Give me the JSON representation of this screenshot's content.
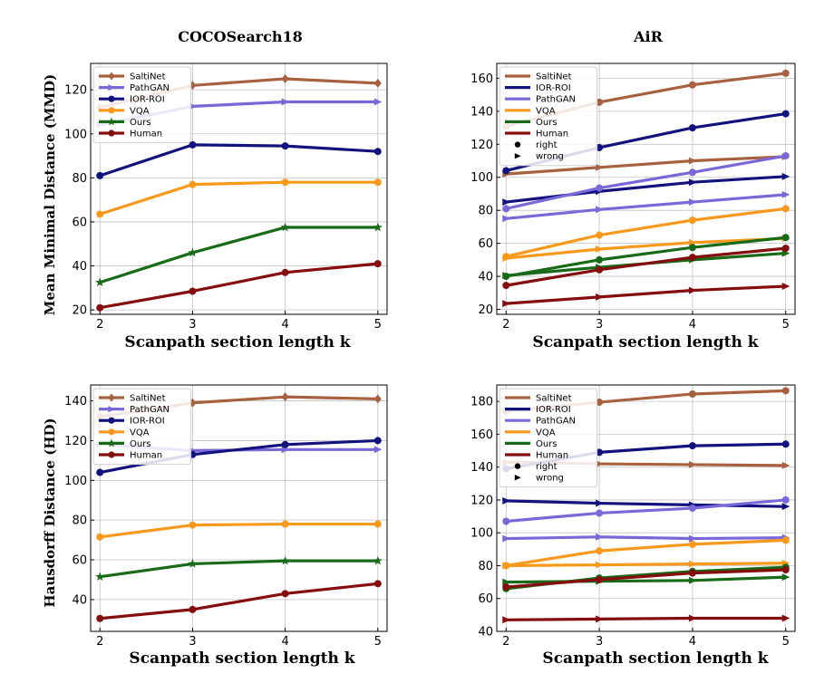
{
  "colors": {
    "saltinet": "#a8613f",
    "pathgan": "#7b68d8",
    "iorroi": "#12127e",
    "vqa": "#f8991c",
    "ours": "#176b17",
    "human": "#850d0d"
  },
  "chart_data": [
    {
      "type": "line",
      "title": "COCOSearch18",
      "ylabel": "Mean Minimal Distance (MMD)",
      "xlabel": "Scanpath section length k",
      "x": [
        2,
        3,
        4,
        5
      ],
      "ylim": [
        18,
        132
      ],
      "yticks": [
        20,
        40,
        60,
        80,
        100,
        120
      ],
      "grid": true,
      "legend_position": "top-left",
      "legend": [
        {
          "label": "SaltiNet",
          "color_key": "saltinet",
          "marker": "diamond"
        },
        {
          "label": "PathGAN",
          "color_key": "pathgan",
          "marker": "triangle-right"
        },
        {
          "label": "IOR-ROI",
          "color_key": "iorroi",
          "marker": "circle"
        },
        {
          "label": "VQA",
          "color_key": "vqa",
          "marker": "circle"
        },
        {
          "label": "Ours",
          "color_key": "ours",
          "marker": "star"
        },
        {
          "label": "Human",
          "color_key": "human",
          "marker": "circle"
        }
      ],
      "series": [
        {
          "name": "SaltiNet",
          "color_key": "saltinet",
          "marker": "diamond",
          "values": [
            112,
            122,
            125,
            123
          ]
        },
        {
          "name": "PathGAN",
          "color_key": "pathgan",
          "marker": "triangle-right",
          "values": [
            104,
            112.5,
            114.5,
            114.5
          ]
        },
        {
          "name": "IOR-ROI",
          "color_key": "iorroi",
          "marker": "circle",
          "values": [
            81,
            95,
            94.5,
            92
          ]
        },
        {
          "name": "VQA",
          "color_key": "vqa",
          "marker": "circle",
          "values": [
            63.5,
            77,
            78,
            78
          ]
        },
        {
          "name": "Ours",
          "color_key": "ours",
          "marker": "star",
          "values": [
            32.5,
            46,
            57.5,
            57.5
          ]
        },
        {
          "name": "Human",
          "color_key": "human",
          "marker": "circle",
          "values": [
            21,
            28.5,
            37,
            41
          ]
        }
      ]
    },
    {
      "type": "line",
      "title": "AiR",
      "ylabel": "",
      "xlabel": "Scanpath section length k",
      "x": [
        2,
        3,
        4,
        5
      ],
      "ylim": [
        17,
        169
      ],
      "yticks": [
        20,
        40,
        60,
        80,
        100,
        120,
        140,
        160
      ],
      "grid": true,
      "legend_position": "top-left",
      "legend": [
        {
          "label": "SaltiNet",
          "color_key": "saltinet",
          "marker": "line"
        },
        {
          "label": "IOR-ROI",
          "color_key": "iorroi",
          "marker": "line"
        },
        {
          "label": "PathGAN",
          "color_key": "pathgan",
          "marker": "line"
        },
        {
          "label": "VQA",
          "color_key": "vqa",
          "marker": "line"
        },
        {
          "label": "Ours",
          "color_key": "ours",
          "marker": "line"
        },
        {
          "label": "Human",
          "color_key": "human",
          "marker": "line"
        },
        {
          "label": "right",
          "color": "#000000",
          "marker": "circle"
        },
        {
          "label": "wrong",
          "color": "#000000",
          "marker": "triangle-right"
        }
      ],
      "series": [
        {
          "name": "SaltiNet right",
          "color_key": "saltinet",
          "marker": "circle",
          "values": [
            131,
            145.5,
            156,
            163
          ]
        },
        {
          "name": "SaltiNet wrong",
          "color_key": "saltinet",
          "marker": "triangle-right",
          "values": [
            102,
            106,
            110,
            112.5
          ]
        },
        {
          "name": "IOR-ROI right",
          "color_key": "iorroi",
          "marker": "circle",
          "values": [
            104,
            118,
            130,
            138.5
          ]
        },
        {
          "name": "IOR-ROI wrong",
          "color_key": "iorroi",
          "marker": "triangle-right",
          "values": [
            85,
            91.5,
            97,
            100.5
          ]
        },
        {
          "name": "PathGAN right",
          "color_key": "pathgan",
          "marker": "circle",
          "values": [
            81,
            93.5,
            103,
            113
          ]
        },
        {
          "name": "PathGAN wrong",
          "color_key": "pathgan",
          "marker": "triangle-right",
          "values": [
            75,
            80.5,
            85,
            89.5
          ]
        },
        {
          "name": "VQA right",
          "color_key": "vqa",
          "marker": "circle",
          "values": [
            52,
            65,
            74,
            81
          ]
        },
        {
          "name": "VQA wrong",
          "color_key": "vqa",
          "marker": "triangle-right",
          "values": [
            51,
            56.5,
            60.5,
            63
          ]
        },
        {
          "name": "Ours right",
          "color_key": "ours",
          "marker": "circle",
          "values": [
            40,
            50,
            57.5,
            63.5
          ]
        },
        {
          "name": "Ours wrong",
          "color_key": "ours",
          "marker": "triangle-right",
          "values": [
            40.5,
            45.5,
            50,
            54
          ]
        },
        {
          "name": "Human right",
          "color_key": "human",
          "marker": "circle",
          "values": [
            34.5,
            44,
            51.5,
            57
          ]
        },
        {
          "name": "Human wrong",
          "color_key": "human",
          "marker": "triangle-right",
          "values": [
            23.5,
            27.5,
            31.5,
            34
          ]
        }
      ]
    },
    {
      "type": "line",
      "title": "",
      "ylabel": "Hausdorff Distance (HD)",
      "xlabel": "Scanpath section length k",
      "x": [
        2,
        3,
        4,
        5
      ],
      "ylim": [
        24,
        148
      ],
      "yticks": [
        40,
        60,
        80,
        100,
        120,
        140
      ],
      "grid": true,
      "legend_position": "top-left",
      "legend": [
        {
          "label": "SaltiNet",
          "color_key": "saltinet",
          "marker": "diamond"
        },
        {
          "label": "PathGAN",
          "color_key": "pathgan",
          "marker": "triangle-right"
        },
        {
          "label": "IOR-ROI",
          "color_key": "iorroi",
          "marker": "circle"
        },
        {
          "label": "VQA",
          "color_key": "vqa",
          "marker": "circle"
        },
        {
          "label": "Ours",
          "color_key": "ours",
          "marker": "star"
        },
        {
          "label": "Human",
          "color_key": "human",
          "marker": "circle"
        }
      ],
      "series": [
        {
          "name": "SaltiNet",
          "color_key": "saltinet",
          "marker": "diamond",
          "values": [
            132,
            139,
            142,
            141
          ]
        },
        {
          "name": "PathGAN",
          "color_key": "pathgan",
          "marker": "triangle-right",
          "values": [
            118,
            115,
            115.5,
            115.5
          ]
        },
        {
          "name": "IOR-ROI",
          "color_key": "iorroi",
          "marker": "circle",
          "values": [
            104,
            113,
            118,
            120
          ]
        },
        {
          "name": "VQA",
          "color_key": "vqa",
          "marker": "circle",
          "values": [
            71.5,
            77.5,
            78,
            78
          ]
        },
        {
          "name": "Ours",
          "color_key": "ours",
          "marker": "star",
          "values": [
            51.5,
            58,
            59.5,
            59.5
          ]
        },
        {
          "name": "Human",
          "color_key": "human",
          "marker": "circle",
          "values": [
            30.5,
            35,
            43,
            48
          ]
        }
      ]
    },
    {
      "type": "line",
      "title": "",
      "ylabel": "",
      "xlabel": "Scanpath section length k",
      "x": [
        2,
        3,
        4,
        5
      ],
      "ylim": [
        40,
        190
      ],
      "yticks": [
        40,
        60,
        80,
        100,
        120,
        140,
        160,
        180
      ],
      "grid": true,
      "legend_position": "top-left",
      "legend": [
        {
          "label": "SaltiNet",
          "color_key": "saltinet",
          "marker": "line"
        },
        {
          "label": "IOR-ROI",
          "color_key": "iorroi",
          "marker": "line"
        },
        {
          "label": "PathGAN",
          "color_key": "pathgan",
          "marker": "line"
        },
        {
          "label": "VQA",
          "color_key": "vqa",
          "marker": "line"
        },
        {
          "label": "Ours",
          "color_key": "ours",
          "marker": "line"
        },
        {
          "label": "Human",
          "color_key": "human",
          "marker": "line"
        },
        {
          "label": "right",
          "color": "#000000",
          "marker": "circle"
        },
        {
          "label": "wrong",
          "color": "#000000",
          "marker": "triangle-right"
        }
      ],
      "series": [
        {
          "name": "SaltiNet right",
          "color_key": "saltinet",
          "marker": "circle",
          "values": [
            174,
            179.5,
            184.5,
            186.5
          ]
        },
        {
          "name": "SaltiNet wrong",
          "color_key": "saltinet",
          "marker": "triangle-right",
          "values": [
            143,
            142,
            141.5,
            141
          ]
        },
        {
          "name": "IOR-ROI right",
          "color_key": "iorroi",
          "marker": "circle",
          "values": [
            139,
            149,
            153,
            154
          ]
        },
        {
          "name": "IOR-ROI wrong",
          "color_key": "iorroi",
          "marker": "triangle-right",
          "values": [
            119.5,
            118,
            117,
            116
          ]
        },
        {
          "name": "PathGAN right",
          "color_key": "pathgan",
          "marker": "circle",
          "values": [
            107,
            112,
            115,
            120
          ]
        },
        {
          "name": "PathGAN wrong",
          "color_key": "pathgan",
          "marker": "triangle-right",
          "values": [
            96.5,
            97.5,
            96.5,
            97
          ]
        },
        {
          "name": "VQA right",
          "color_key": "vqa",
          "marker": "circle",
          "values": [
            80,
            89,
            93,
            95.5
          ]
        },
        {
          "name": "VQA wrong",
          "color_key": "vqa",
          "marker": "triangle-right",
          "values": [
            80,
            80.5,
            81,
            81.5
          ]
        },
        {
          "name": "Ours right",
          "color_key": "ours",
          "marker": "circle",
          "values": [
            66,
            72.5,
            76.5,
            79
          ]
        },
        {
          "name": "Ours wrong",
          "color_key": "ours",
          "marker": "triangle-right",
          "values": [
            70,
            70.5,
            71,
            73
          ]
        },
        {
          "name": "Human right",
          "color_key": "human",
          "marker": "circle",
          "values": [
            67,
            71.5,
            75.5,
            77.5
          ]
        },
        {
          "name": "Human wrong",
          "color_key": "human",
          "marker": "triangle-right",
          "values": [
            47,
            47.5,
            48,
            48
          ]
        }
      ]
    }
  ]
}
